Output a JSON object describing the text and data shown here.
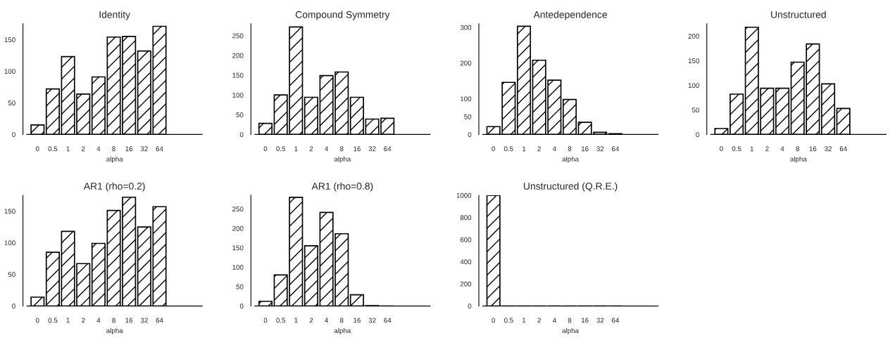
{
  "chart_data": [
    {
      "type": "bar",
      "title": "Identity",
      "xlabel": "alpha",
      "categories": [
        "0",
        "0.5",
        "1",
        "2",
        "4",
        "8",
        "16",
        "32",
        "64"
      ],
      "values": [
        15,
        72,
        123,
        64,
        91,
        154,
        155,
        132,
        171
      ],
      "color": "#000000",
      "ylim": [
        0,
        175
      ],
      "yticks": [
        0,
        50,
        100,
        150
      ],
      "grid": false,
      "legend": false
    },
    {
      "type": "bar",
      "title": "Compound Symmetry",
      "xlabel": "alpha",
      "categories": [
        "0",
        "0.5",
        "1",
        "2",
        "4",
        "8",
        "16",
        "32",
        "64"
      ],
      "values": [
        28,
        100,
        272,
        94,
        149,
        158,
        94,
        39,
        41
      ],
      "color": "#000000",
      "ylim": [
        0,
        280
      ],
      "yticks": [
        0,
        50,
        100,
        150,
        200,
        250
      ],
      "grid": false,
      "legend": false
    },
    {
      "type": "bar",
      "title": "Antedependence",
      "xlabel": "alpha",
      "categories": [
        "0",
        "0.5",
        "1",
        "2",
        "4",
        "8",
        "16",
        "32",
        "64"
      ],
      "values": [
        22,
        146,
        303,
        208,
        152,
        98,
        34,
        6,
        2
      ],
      "color": "#000000",
      "ylim": [
        0,
        310
      ],
      "yticks": [
        0,
        50,
        100,
        200,
        300
      ],
      "grid": false,
      "legend": false
    },
    {
      "type": "bar",
      "title": "Unstructured",
      "xlabel": "alpha",
      "categories": [
        "0",
        "0.5",
        "1",
        "2",
        "4",
        "8",
        "16",
        "32",
        "64"
      ],
      "values": [
        12,
        82,
        218,
        94,
        94,
        147,
        184,
        103,
        53
      ],
      "color": "#000000",
      "ylim": [
        0,
        225
      ],
      "yticks": [
        0,
        50,
        100,
        150,
        200
      ],
      "grid": false,
      "legend": false
    },
    {
      "type": "bar",
      "title": "AR1 (rho=0.2)",
      "xlabel": "alpha",
      "categories": [
        "0",
        "0.5",
        "1",
        "2",
        "4",
        "8",
        "16",
        "32",
        "64"
      ],
      "values": [
        14,
        85,
        118,
        67,
        99,
        151,
        172,
        125,
        157
      ],
      "color": "#000000",
      "ylim": [
        0,
        175
      ],
      "yticks": [
        0,
        50,
        100,
        150
      ],
      "grid": false,
      "legend": false
    },
    {
      "type": "bar",
      "title": "AR1 (rho=0.8)",
      "xlabel": "alpha",
      "categories": [
        "0",
        "0.5",
        "1",
        "2",
        "4",
        "8",
        "16",
        "32",
        "64"
      ],
      "values": [
        12,
        80,
        280,
        155,
        241,
        186,
        29,
        1,
        0
      ],
      "color": "#000000",
      "ylim": [
        0,
        285
      ],
      "yticks": [
        0,
        50,
        100,
        150,
        200,
        250
      ],
      "grid": false,
      "legend": false
    },
    {
      "type": "bar",
      "title": "Unstructured (Q.R.E.)",
      "xlabel": "alpha",
      "categories": [
        "0",
        "0.5",
        "1",
        "2",
        "4",
        "8",
        "16",
        "32",
        "64"
      ],
      "values": [
        1000,
        0,
        0,
        0,
        0,
        0,
        0,
        0,
        0
      ],
      "color": "#000000",
      "ylim": [
        0,
        1000
      ],
      "yticks": [
        0,
        200,
        400,
        600,
        800,
        1000
      ],
      "grid": false,
      "legend": false
    }
  ]
}
